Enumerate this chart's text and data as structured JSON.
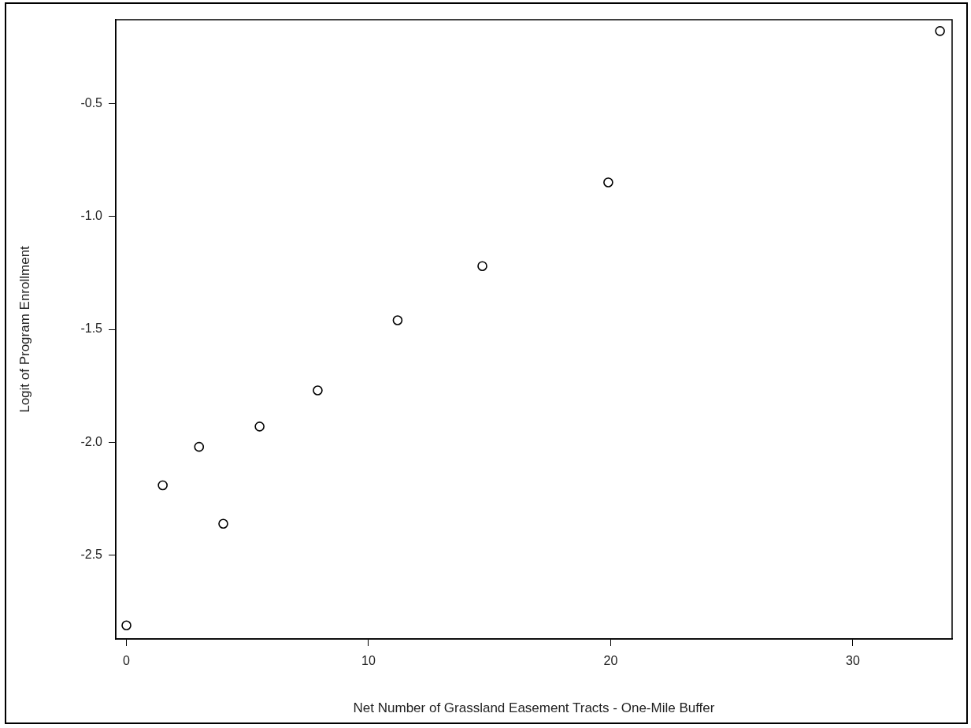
{
  "chart_data": {
    "type": "scatter",
    "xlabel": "Net Number of Grassland Easement Tracts - One-Mile Buffer",
    "ylabel": "Logit of Program Enrollment",
    "x": [
      0,
      1.5,
      3.0,
      4.0,
      5.5,
      7.9,
      11.2,
      14.7,
      19.9,
      33.6
    ],
    "values": [
      -2.81,
      -2.19,
      -2.02,
      -2.36,
      -1.93,
      -1.77,
      -1.46,
      -1.22,
      -0.85,
      -0.18
    ],
    "color": "#000000",
    "marker": "circle",
    "grid": false,
    "legend": false,
    "xlim": [
      -0.44,
      34.1
    ],
    "xticks": [
      0,
      10,
      20,
      30
    ],
    "ylim": [
      -2.87,
      -0.13
    ],
    "yticks": [
      -2.5,
      {
        "value": -2,
        "label": "-2.0"
      },
      -1.5,
      {
        "value": -1,
        "label": "-1.0"
      },
      -0.5
    ]
  }
}
